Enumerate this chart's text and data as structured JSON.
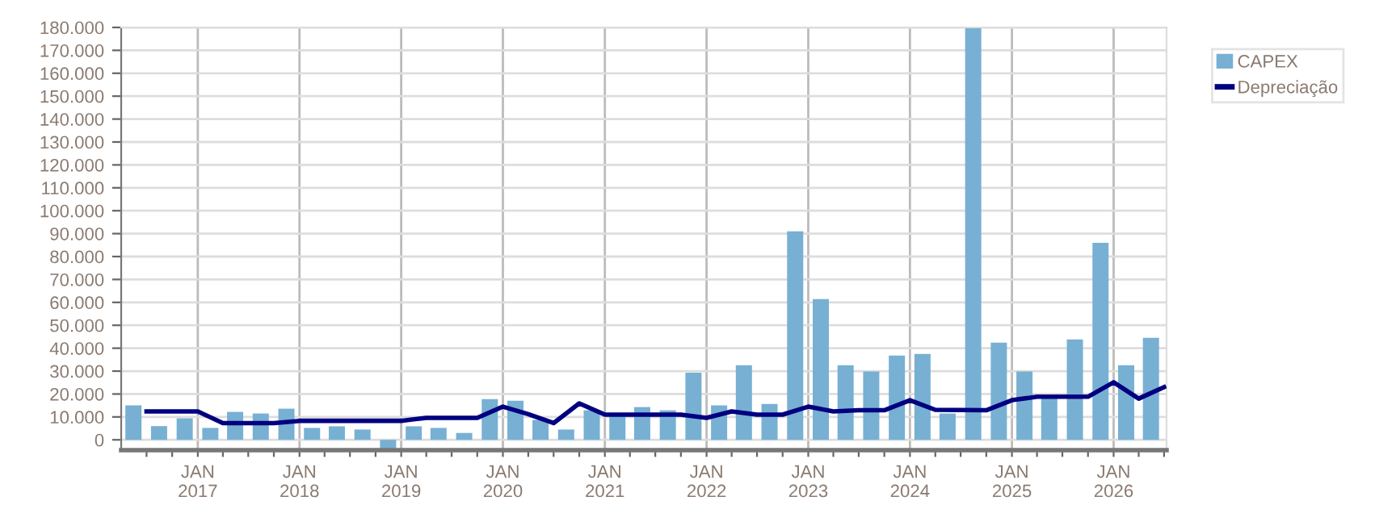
{
  "chart_data": {
    "type": "bar",
    "legend": "top right",
    "grid": true,
    "xlim": [
      "2016-04-01",
      "2026-07-10"
    ],
    "xticks": [
      {
        "value": "2016-07-01",
        "label": null
      },
      {
        "value": "2016-10-01",
        "label": null
      },
      {
        "value": "2017-01-01",
        "label": "JAN\n2017"
      },
      {
        "value": "2017-04-01",
        "label": null
      },
      {
        "value": "2017-07-01",
        "label": null
      },
      {
        "value": "2017-10-01",
        "label": null
      },
      {
        "value": "2018-01-01",
        "label": "JAN\n2018"
      },
      {
        "value": "2018-04-01",
        "label": null
      },
      {
        "value": "2018-07-01",
        "label": null
      },
      {
        "value": "2018-10-01",
        "label": null
      },
      {
        "value": "2019-01-01",
        "label": "JAN\n2019"
      },
      {
        "value": "2019-04-01",
        "label": null
      },
      {
        "value": "2019-07-01",
        "label": null
      },
      {
        "value": "2019-10-01",
        "label": null
      },
      {
        "value": "2020-01-01",
        "label": "JAN\n2020"
      },
      {
        "value": "2020-04-01",
        "label": null
      },
      {
        "value": "2020-07-01",
        "label": null
      },
      {
        "value": "2020-10-01",
        "label": null
      },
      {
        "value": "2021-01-01",
        "label": "JAN\n2021"
      },
      {
        "value": "2021-04-01",
        "label": null
      },
      {
        "value": "2021-07-01",
        "label": null
      },
      {
        "value": "2021-10-01",
        "label": null
      },
      {
        "value": "2022-01-01",
        "label": "JAN\n2022"
      },
      {
        "value": "2022-04-01",
        "label": null
      },
      {
        "value": "2022-07-01",
        "label": null
      },
      {
        "value": "2022-10-01",
        "label": null
      },
      {
        "value": "2023-01-01",
        "label": "JAN\n2023"
      },
      {
        "value": "2023-04-01",
        "label": null
      },
      {
        "value": "2023-07-01",
        "label": null
      },
      {
        "value": "2023-10-01",
        "label": null
      },
      {
        "value": "2024-01-01",
        "label": "JAN\n2024"
      },
      {
        "value": "2024-04-01",
        "label": null
      },
      {
        "value": "2024-07-01",
        "label": null
      },
      {
        "value": "2024-10-01",
        "label": null
      },
      {
        "value": "2025-01-01",
        "label": "JAN\n2025"
      },
      {
        "value": "2025-04-01",
        "label": null
      },
      {
        "value": "2025-07-01",
        "label": null
      },
      {
        "value": "2025-10-01",
        "label": null
      },
      {
        "value": "2026-01-01",
        "label": "JAN\n2026"
      },
      {
        "value": "2026-04-01",
        "label": null
      },
      {
        "value": "2026-07-01",
        "label": null
      }
    ],
    "ylim": [
      -4500,
      180000
    ],
    "yticks": [
      {
        "value": 0,
        "label": "0"
      },
      {
        "value": 10000,
        "label": "10.000"
      },
      {
        "value": 20000,
        "label": "20.000"
      },
      {
        "value": 30000,
        "label": "30.000"
      },
      {
        "value": 40000,
        "label": "40.000"
      },
      {
        "value": 50000,
        "label": "50.000"
      },
      {
        "value": 60000,
        "label": "60.000"
      },
      {
        "value": 70000,
        "label": "70.000"
      },
      {
        "value": 80000,
        "label": "80.000"
      },
      {
        "value": 90000,
        "label": "90.000"
      },
      {
        "value": 100000,
        "label": "100.000"
      },
      {
        "value": 110000,
        "label": "110.000"
      },
      {
        "value": 120000,
        "label": "120.000"
      },
      {
        "value": 130000,
        "label": "130.000"
      },
      {
        "value": 140000,
        "label": "140.000"
      },
      {
        "value": 150000,
        "label": "150.000"
      },
      {
        "value": 160000,
        "label": "160.000"
      },
      {
        "value": 170000,
        "label": "170.000"
      },
      {
        "value": 180000,
        "label": "180.000"
      }
    ],
    "series": [
      {
        "name": "CAPEX",
        "color": "#77b0d3",
        "x": [
          "2016-05-15",
          "2016-08-15",
          "2016-11-15",
          "2017-02-15",
          "2017-05-15",
          "2017-08-15",
          "2017-11-15",
          "2018-02-15",
          "2018-05-15",
          "2018-08-15",
          "2018-11-15",
          "2019-02-15",
          "2019-05-15",
          "2019-08-15",
          "2019-11-15",
          "2020-02-15",
          "2020-05-15",
          "2020-08-15",
          "2020-11-15",
          "2021-02-15",
          "2021-05-15",
          "2021-08-15",
          "2021-11-15",
          "2022-02-15",
          "2022-05-15",
          "2022-08-15",
          "2022-11-15",
          "2023-02-15",
          "2023-05-15",
          "2023-08-15",
          "2023-11-15",
          "2024-02-15",
          "2024-05-15",
          "2024-08-15",
          "2024-11-15",
          "2025-02-15",
          "2025-05-15",
          "2025-08-15",
          "2025-11-15",
          "2026-02-15",
          "2026-05-15"
        ],
        "values": [
          15000,
          6000,
          9400,
          5200,
          12200,
          11500,
          13600,
          5200,
          5900,
          4500,
          -4200,
          5900,
          5200,
          3000,
          17800,
          17100,
          8700,
          4500,
          12900,
          11200,
          14300,
          12900,
          29300,
          15000,
          32600,
          15700,
          91000,
          61400,
          32600,
          29800,
          36800,
          37500,
          11500,
          180000,
          42400,
          29800,
          18500,
          43800,
          86000,
          32600,
          44500
        ]
      },
      {
        "name": "Depreciação",
        "type": "line",
        "color": "#000080",
        "x": [
          "2016-07-01",
          "2017-01-01",
          "2017-04-01",
          "2017-10-01",
          "2018-01-01",
          "2019-01-01",
          "2019-04-01",
          "2019-10-01",
          "2020-01-01",
          "2020-04-01",
          "2020-07-01",
          "2020-10-01",
          "2021-01-01",
          "2021-10-01",
          "2022-01-01",
          "2022-04-01",
          "2022-07-01",
          "2022-10-01",
          "2023-01-01",
          "2023-04-01",
          "2023-07-01",
          "2023-10-01",
          "2024-01-01",
          "2024-04-01",
          "2024-10-01",
          "2025-01-01",
          "2025-04-01",
          "2025-10-01",
          "2026-01-01",
          "2026-04-01",
          "2026-07-01"
        ],
        "values": [
          12400,
          12400,
          7300,
          7300,
          8300,
          8300,
          9600,
          9600,
          14500,
          11200,
          7300,
          15900,
          11000,
          11000,
          9600,
          12400,
          11000,
          11000,
          14500,
          12400,
          12900,
          12900,
          17300,
          13100,
          12900,
          17300,
          18800,
          18800,
          25100,
          18000,
          23000
        ]
      }
    ]
  }
}
